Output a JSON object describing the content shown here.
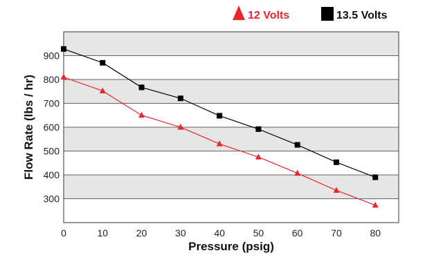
{
  "chart_data": {
    "type": "line",
    "title": "",
    "xlabel": "Pressure (psig)",
    "ylabel": "Flow Rate (lbs / hr)",
    "x": [
      0,
      10,
      20,
      30,
      40,
      50,
      60,
      70,
      80
    ],
    "x_ticks": [
      "0",
      "10",
      "20",
      "30",
      "40",
      "50",
      "60",
      "70",
      "80"
    ],
    "y_ticks": [
      "300",
      "400",
      "500",
      "600",
      "700",
      "800",
      "900"
    ],
    "xlim": [
      0,
      86
    ],
    "ylim": [
      200,
      1000
    ],
    "grid": "horizontal alternating bands",
    "legend_position": "top-right",
    "series": [
      {
        "name": "12 Volts",
        "marker": "triangle",
        "color": "#e8262e",
        "values": [
          810,
          752,
          650,
          600,
          530,
          475,
          407,
          335,
          273
        ]
      },
      {
        "name": "13.5 Volts",
        "marker": "square",
        "color": "#000000",
        "values": [
          928,
          870,
          767,
          721,
          648,
          592,
          526,
          453,
          390
        ]
      }
    ],
    "band_color": "#e6e6e6"
  }
}
